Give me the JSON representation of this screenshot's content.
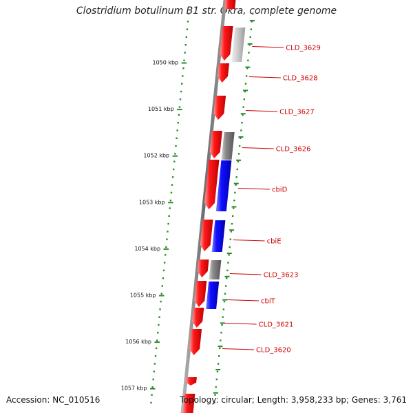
{
  "title": "Clostridium botulinum B1 str. Okra, complete genome",
  "footer": {
    "accession": "Accession: NC_010516",
    "topology": "Topology: circular; Length: 3,958,233 bp; Genes: 3,761"
  },
  "colors": {
    "forward_gene": "#ee0000",
    "reverse_gene": "#0000ee",
    "other_feature": "#777777",
    "ticks": "#2a8a2a",
    "backbone": "#777777",
    "label": "#cc0000"
  },
  "ruler": [
    {
      "label": "1050 kbp"
    },
    {
      "label": "1051 kbp"
    },
    {
      "label": "1052 kbp"
    },
    {
      "label": "1053 kbp"
    },
    {
      "label": "1054 kbp"
    },
    {
      "label": "1055 kbp"
    },
    {
      "label": "1056 kbp"
    },
    {
      "label": "1057 kbp"
    }
  ],
  "genes": [
    {
      "label": "CLD_3629"
    },
    {
      "label": "CLD_3628"
    },
    {
      "label": "CLD_3627"
    },
    {
      "label": "CLD_3626"
    },
    {
      "label": "cbiD"
    },
    {
      "label": "cbiE"
    },
    {
      "label": "CLD_3623"
    },
    {
      "label": "cbiT"
    },
    {
      "label": "CLD_3621"
    },
    {
      "label": "CLD_3620"
    }
  ]
}
